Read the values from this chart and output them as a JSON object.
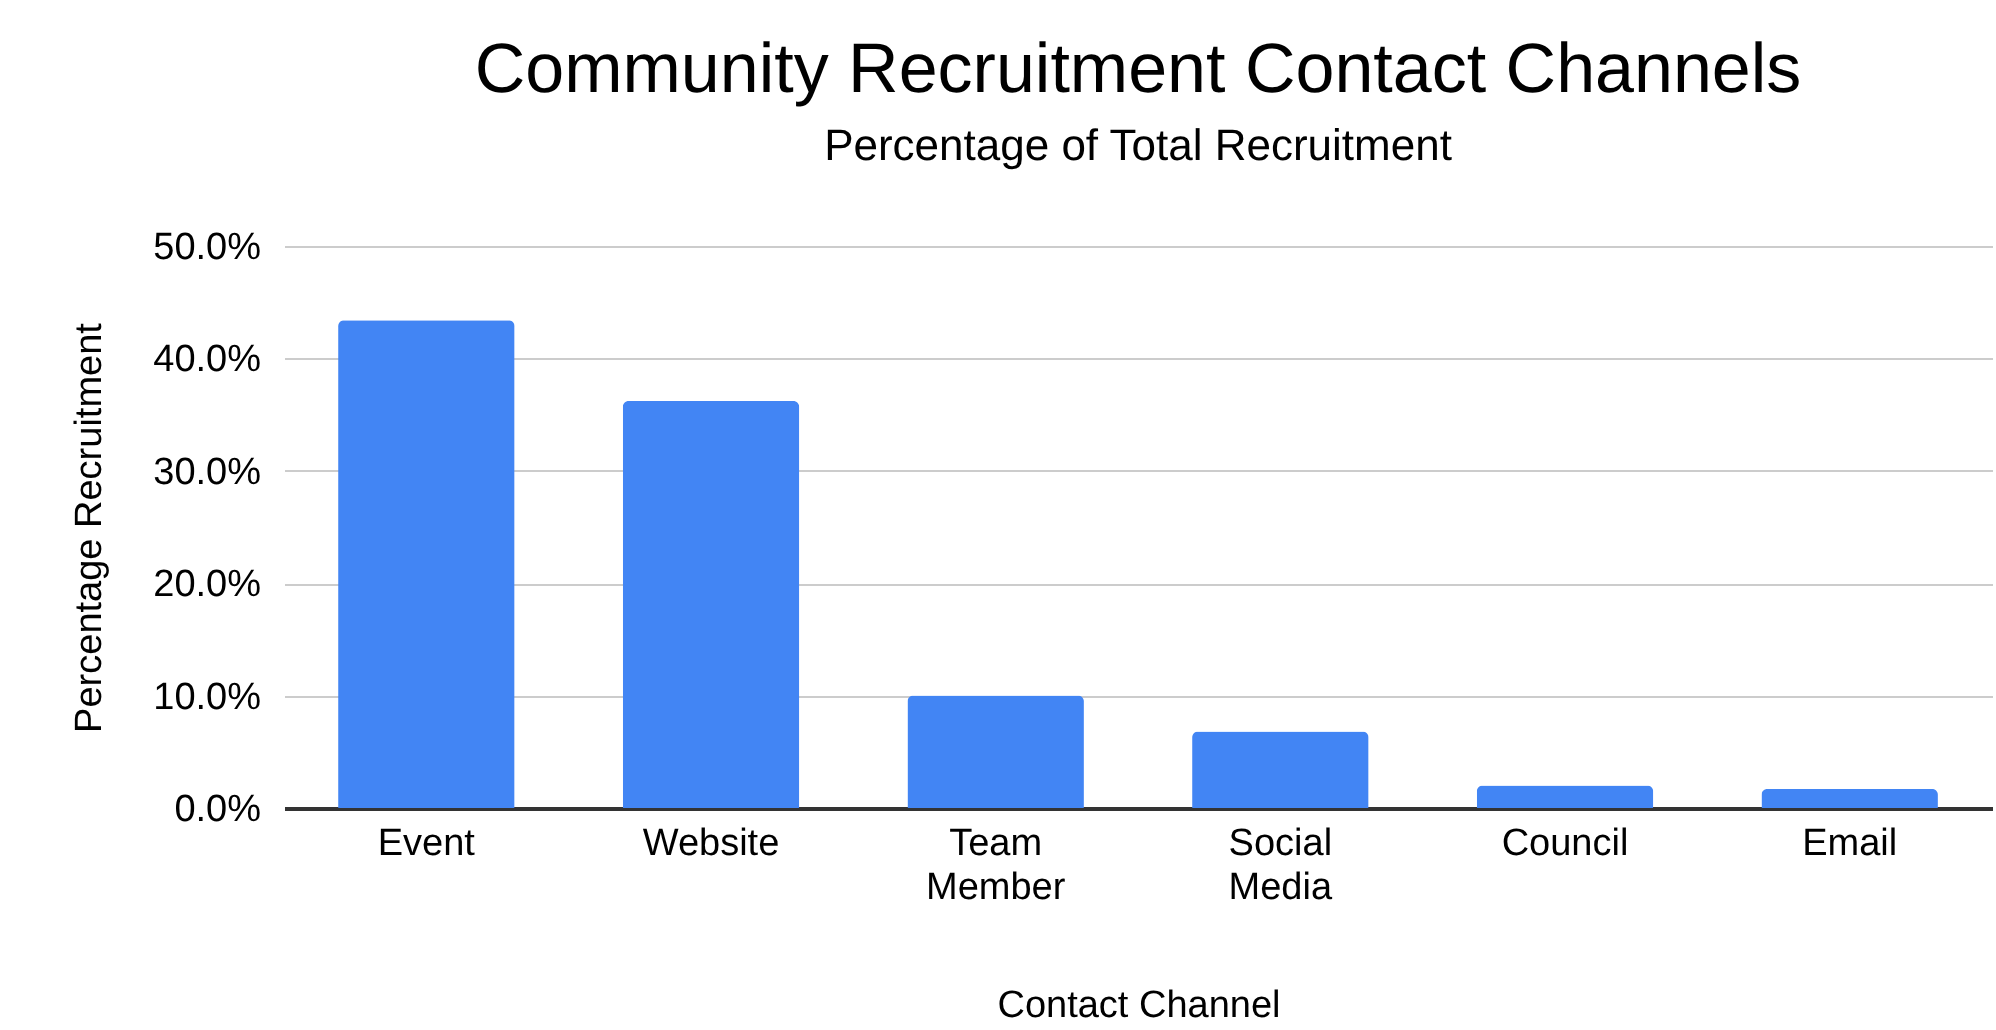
{
  "chart_data": {
    "type": "bar",
    "title": "Community Recruitment Contact Channels",
    "subtitle": "Percentage of Total Recruitment",
    "xlabel": "Contact Channel",
    "ylabel": "Percentage Recruitment",
    "categories": [
      "Event",
      "Website",
      "Team Member",
      "Social Media",
      "Council",
      "Email"
    ],
    "values": [
      43.4,
      36.2,
      10.0,
      6.8,
      2.0,
      1.7
    ],
    "color": "#4285f4",
    "ylim": [
      0,
      50
    ],
    "yticks": [
      {
        "value": 0,
        "label": "0.0%"
      },
      {
        "value": 10,
        "label": "10.0%"
      },
      {
        "value": 20,
        "label": "20.0%"
      },
      {
        "value": 30,
        "label": "30.0%"
      },
      {
        "value": 40,
        "label": "40.0%"
      },
      {
        "value": 50,
        "label": "50.0%"
      }
    ],
    "grid": "y"
  }
}
